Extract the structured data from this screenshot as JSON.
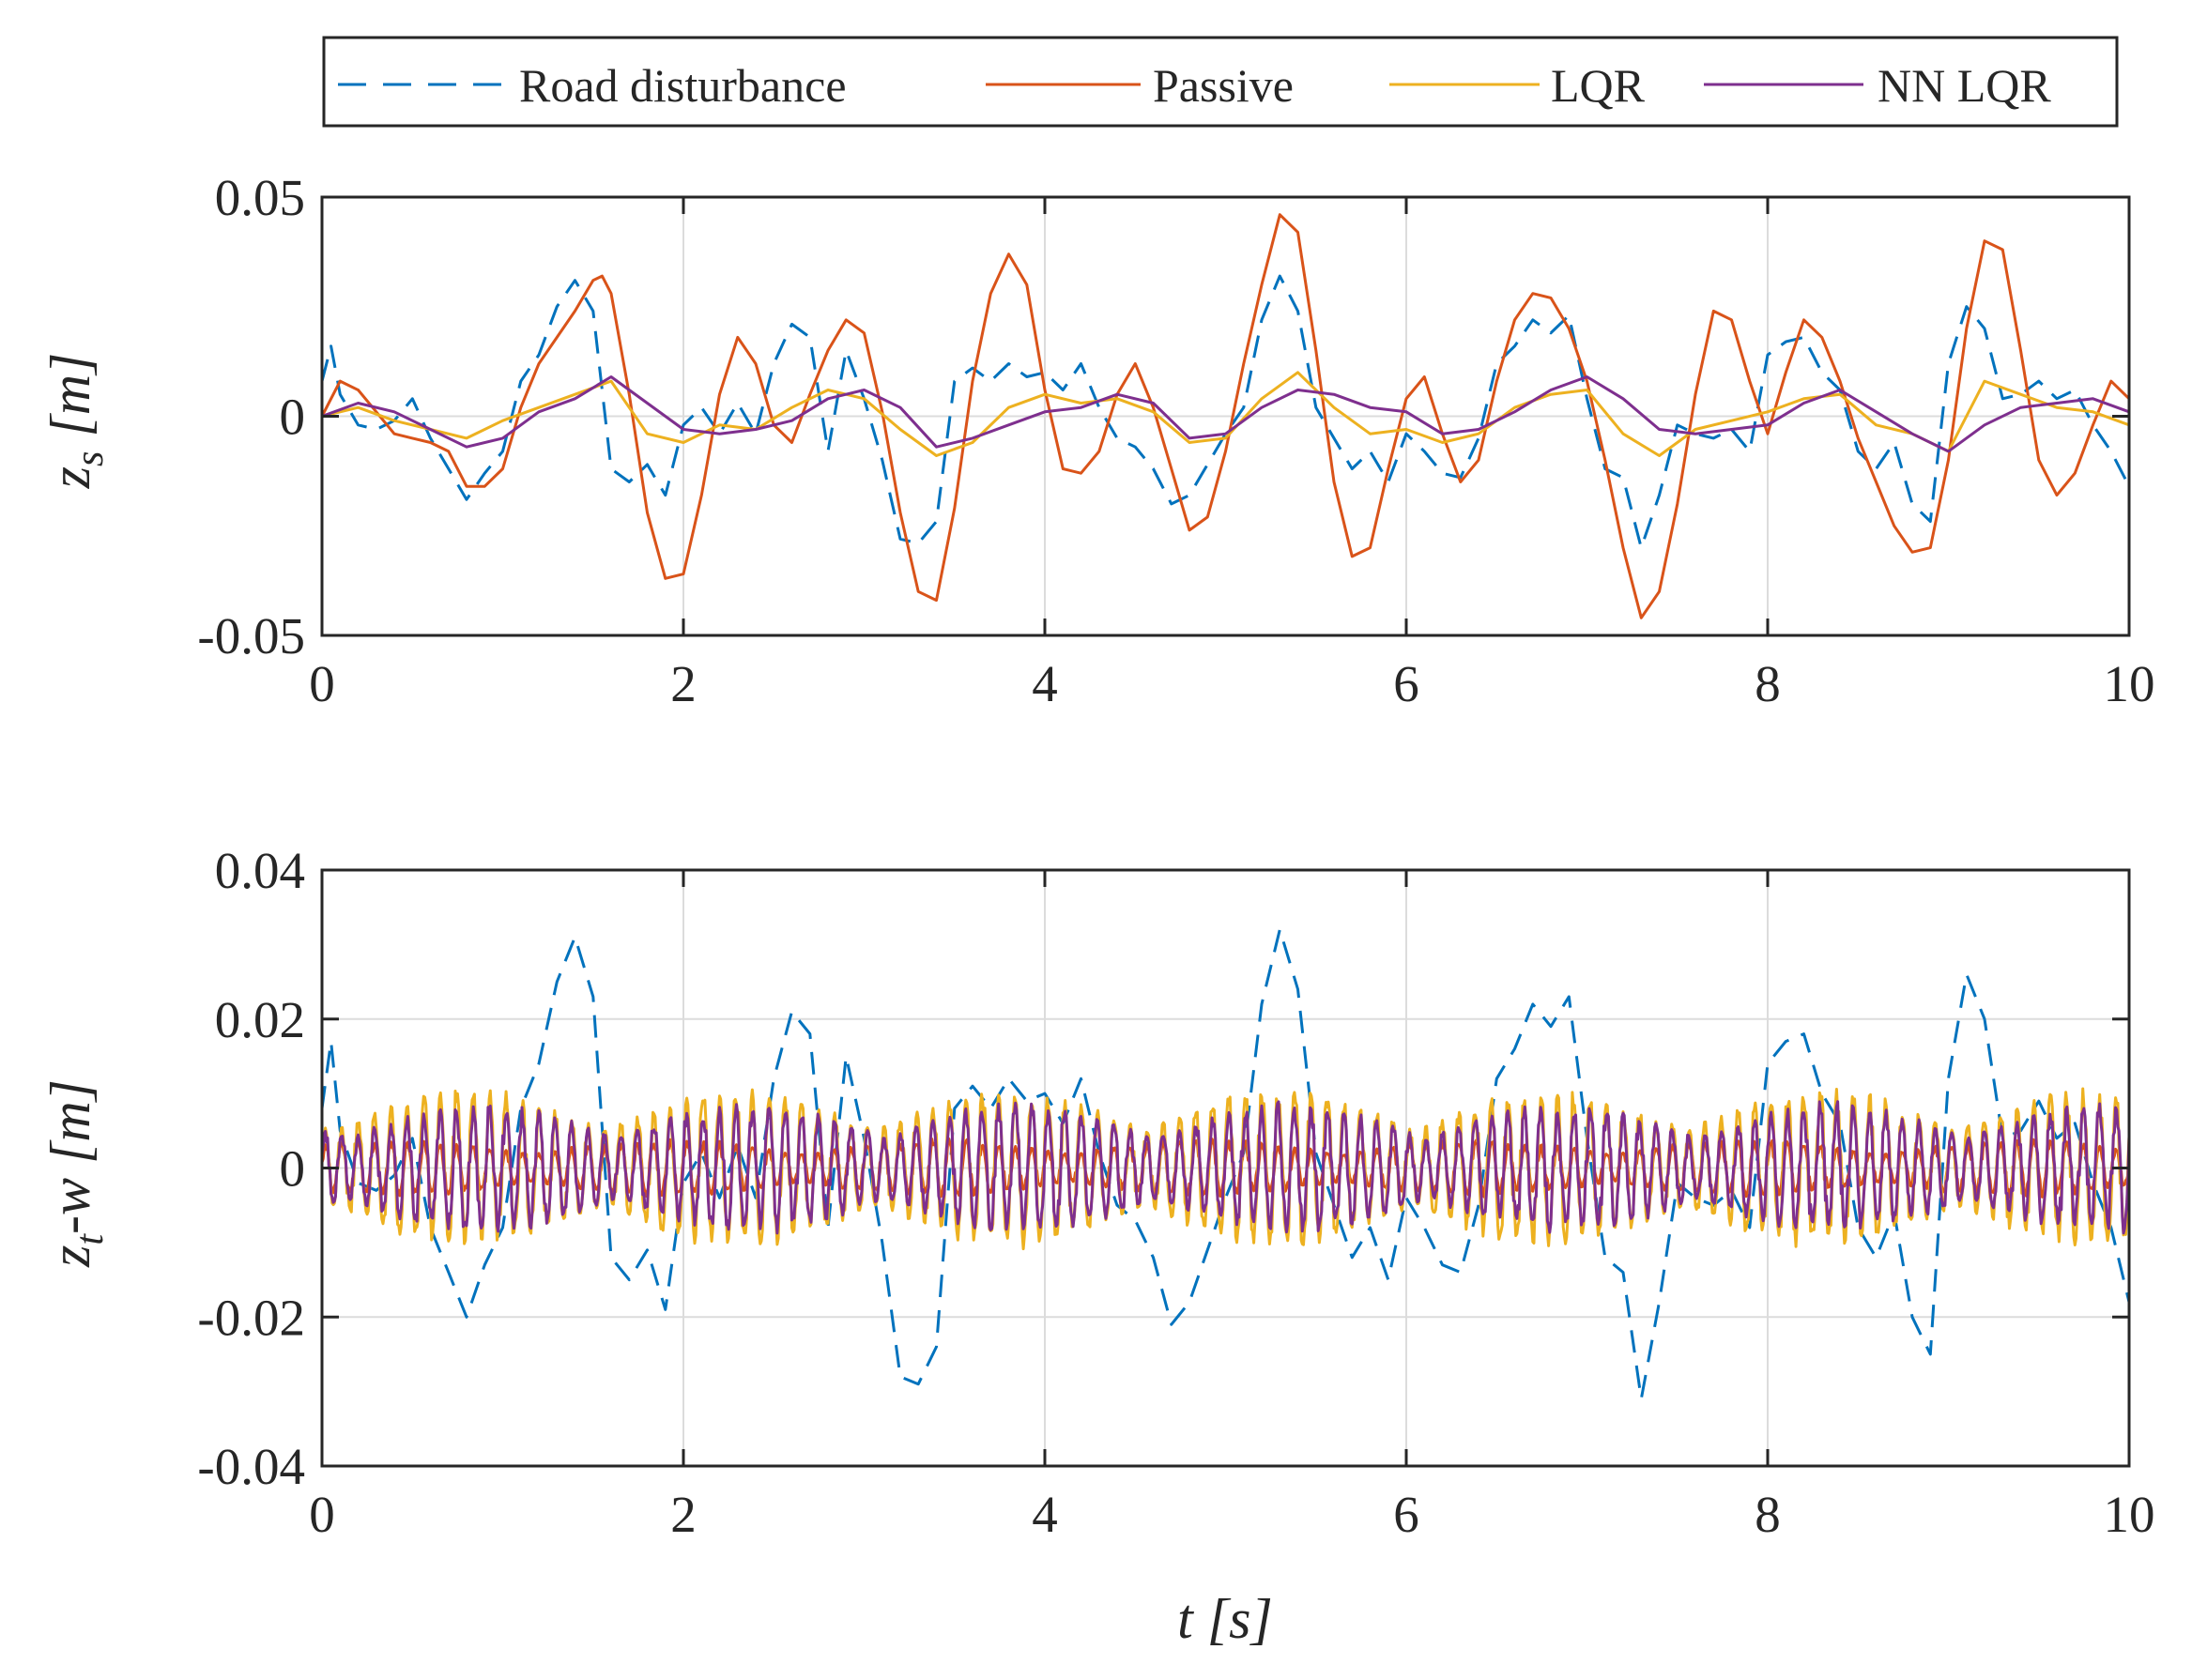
{
  "legend": {
    "items": [
      {
        "label": "Road disturbance",
        "color": "#0072BD",
        "dash": true
      },
      {
        "label": "Passive",
        "color": "#D95319",
        "dash": false
      },
      {
        "label": "LQR",
        "color": "#EDB120",
        "dash": false
      },
      {
        "label": "NN LQR",
        "color": "#7E2F8E",
        "dash": false
      }
    ]
  },
  "chart_data": [
    {
      "type": "line",
      "ylabel_main": "z",
      "ylabel_sub": "s",
      "ylabel_unit": " [m]",
      "xlabel": "",
      "xlim": [
        0,
        10
      ],
      "ylim": [
        -0.05,
        0.05
      ],
      "xticks": [
        0,
        2,
        4,
        6,
        8,
        10
      ],
      "xtick_labels": [
        "0",
        "2",
        "4",
        "6",
        "8",
        "10"
      ],
      "yticks": [
        -0.05,
        0,
        0.05
      ],
      "ytick_labels": [
        "-0.05",
        "0",
        "0.05"
      ],
      "grid": true,
      "series": [
        {
          "name": "Road disturbance",
          "color": "#0072BD",
          "dash": true,
          "x": [
            0,
            0.05,
            0.1,
            0.2,
            0.3,
            0.4,
            0.5,
            0.6,
            0.7,
            0.8,
            0.9,
            1.0,
            1.1,
            1.2,
            1.3,
            1.4,
            1.5,
            1.6,
            1.7,
            1.8,
            1.9,
            2.0,
            2.1,
            2.2,
            2.3,
            2.4,
            2.5,
            2.6,
            2.7,
            2.8,
            2.9,
            3.0,
            3.1,
            3.2,
            3.3,
            3.4,
            3.5,
            3.6,
            3.7,
            3.8,
            3.9,
            4.0,
            4.1,
            4.2,
            4.3,
            4.4,
            4.5,
            4.6,
            4.7,
            4.8,
            4.9,
            5.0,
            5.1,
            5.2,
            5.3,
            5.4,
            5.5,
            5.6,
            5.7,
            5.8,
            5.9,
            6.0,
            6.1,
            6.2,
            6.3,
            6.4,
            6.5,
            6.6,
            6.7,
            6.8,
            6.9,
            7.0,
            7.1,
            7.2,
            7.3,
            7.4,
            7.5,
            7.6,
            7.7,
            7.8,
            7.9,
            8.0,
            8.1,
            8.2,
            8.3,
            8.4,
            8.5,
            8.6,
            8.7,
            8.8,
            8.9,
            9.0,
            9.1,
            9.2,
            9.3,
            9.4,
            9.5,
            9.6,
            9.7,
            9.8,
            9.9,
            10.0
          ],
          "y": [
            0.008,
            0.016,
            0.005,
            -0.002,
            -0.003,
            -0.001,
            0.004,
            -0.005,
            -0.012,
            -0.019,
            -0.013,
            -0.008,
            0.008,
            0.014,
            0.025,
            0.031,
            0.024,
            -0.012,
            -0.015,
            -0.011,
            -0.018,
            -0.002,
            0.002,
            -0.004,
            0.003,
            -0.004,
            0.012,
            0.021,
            0.018,
            -0.008,
            0.015,
            0.004,
            -0.01,
            -0.028,
            -0.029,
            -0.024,
            0.008,
            0.011,
            0.008,
            0.012,
            0.009,
            0.01,
            0.006,
            0.012,
            0.002,
            -0.005,
            -0.007,
            -0.012,
            -0.02,
            -0.018,
            -0.011,
            -0.004,
            0.002,
            0.022,
            0.032,
            0.024,
            0.002,
            -0.005,
            -0.012,
            -0.008,
            -0.015,
            -0.004,
            -0.008,
            -0.013,
            -0.014,
            -0.005,
            0.012,
            0.016,
            0.022,
            0.019,
            0.023,
            0.004,
            -0.012,
            -0.014,
            -0.03,
            -0.018,
            -0.002,
            -0.004,
            -0.005,
            -0.003,
            -0.008,
            0.014,
            0.017,
            0.018,
            0.01,
            0.006,
            -0.008,
            -0.012,
            -0.006,
            -0.02,
            -0.024,
            0.012,
            0.025,
            0.02,
            0.004,
            0.005,
            0.008,
            0.004,
            0.006,
            -0.002,
            -0.008,
            -0.016
          ]
        },
        {
          "name": "Passive",
          "color": "#D95319",
          "dash": false,
          "x": [
            0,
            0.1,
            0.2,
            0.3,
            0.4,
            0.5,
            0.6,
            0.7,
            0.8,
            0.9,
            1.0,
            1.1,
            1.2,
            1.3,
            1.4,
            1.5,
            1.55,
            1.6,
            1.7,
            1.8,
            1.9,
            2.0,
            2.1,
            2.2,
            2.3,
            2.4,
            2.5,
            2.6,
            2.7,
            2.8,
            2.9,
            3.0,
            3.1,
            3.2,
            3.3,
            3.4,
            3.5,
            3.6,
            3.7,
            3.8,
            3.9,
            4.0,
            4.1,
            4.2,
            4.3,
            4.4,
            4.5,
            4.6,
            4.7,
            4.8,
            4.9,
            5.0,
            5.1,
            5.2,
            5.3,
            5.4,
            5.5,
            5.6,
            5.7,
            5.8,
            5.9,
            6.0,
            6.1,
            6.2,
            6.3,
            6.4,
            6.5,
            6.6,
            6.7,
            6.8,
            6.9,
            7.0,
            7.1,
            7.2,
            7.3,
            7.4,
            7.5,
            7.6,
            7.7,
            7.8,
            7.9,
            8.0,
            8.1,
            8.2,
            8.3,
            8.4,
            8.5,
            8.6,
            8.7,
            8.8,
            8.9,
            9.0,
            9.1,
            9.2,
            9.3,
            9.4,
            9.5,
            9.6,
            9.7,
            9.8,
            9.9,
            10.0
          ],
          "y": [
            0,
            0.008,
            0.006,
            0.001,
            -0.004,
            -0.005,
            -0.006,
            -0.008,
            -0.016,
            -0.016,
            -0.012,
            0.002,
            0.012,
            0.018,
            0.024,
            0.031,
            0.032,
            0.028,
            0.005,
            -0.022,
            -0.037,
            -0.036,
            -0.018,
            0.005,
            0.018,
            0.012,
            -0.002,
            -0.006,
            0.005,
            0.015,
            0.022,
            0.019,
            0.001,
            -0.022,
            -0.04,
            -0.042,
            -0.021,
            0.008,
            0.028,
            0.037,
            0.03,
            0.006,
            -0.012,
            -0.013,
            -0.008,
            0.005,
            0.012,
            0.002,
            -0.012,
            -0.026,
            -0.023,
            -0.008,
            0.012,
            0.03,
            0.046,
            0.042,
            0.015,
            -0.015,
            -0.032,
            -0.03,
            -0.012,
            0.004,
            0.009,
            -0.004,
            -0.015,
            -0.01,
            0.008,
            0.022,
            0.028,
            0.027,
            0.02,
            0.008,
            -0.01,
            -0.03,
            -0.046,
            -0.04,
            -0.02,
            0.005,
            0.024,
            0.022,
            0.008,
            -0.004,
            0.01,
            0.022,
            0.018,
            0.008,
            -0.005,
            -0.015,
            -0.025,
            -0.031,
            -0.03,
            -0.01,
            0.02,
            0.04,
            0.038,
            0.015,
            -0.01,
            -0.018,
            -0.013,
            -0.002,
            0.008,
            0.004
          ]
        },
        {
          "name": "LQR",
          "color": "#EDB120",
          "dash": false,
          "x": [
            0,
            0.2,
            0.4,
            0.6,
            0.8,
            1.0,
            1.2,
            1.4,
            1.6,
            1.8,
            2.0,
            2.2,
            2.4,
            2.6,
            2.8,
            3.0,
            3.2,
            3.4,
            3.6,
            3.8,
            4.0,
            4.2,
            4.4,
            4.6,
            4.8,
            5.0,
            5.2,
            5.4,
            5.6,
            5.8,
            6.0,
            6.2,
            6.4,
            6.6,
            6.8,
            7.0,
            7.2,
            7.4,
            7.6,
            7.8,
            8.0,
            8.2,
            8.4,
            8.6,
            8.8,
            9.0,
            9.2,
            9.4,
            9.6,
            9.8,
            10.0
          ],
          "y": [
            0,
            0.002,
            -0.001,
            -0.003,
            -0.005,
            -0.001,
            0.002,
            0.005,
            0.008,
            -0.004,
            -0.006,
            -0.002,
            -0.003,
            0.002,
            0.006,
            0.004,
            -0.003,
            -0.009,
            -0.006,
            0.002,
            0.005,
            0.003,
            0.004,
            0.001,
            -0.006,
            -0.005,
            0.004,
            0.01,
            0.002,
            -0.004,
            -0.003,
            -0.006,
            -0.004,
            0.002,
            0.005,
            0.006,
            -0.004,
            -0.009,
            -0.003,
            -0.001,
            0.001,
            0.004,
            0.005,
            -0.002,
            -0.004,
            -0.008,
            0.008,
            0.005,
            0.002,
            0.001,
            -0.002
          ]
        },
        {
          "name": "NN LQR",
          "color": "#7E2F8E",
          "dash": false,
          "x": [
            0,
            0.2,
            0.4,
            0.6,
            0.8,
            1.0,
            1.2,
            1.4,
            1.6,
            1.8,
            2.0,
            2.2,
            2.4,
            2.6,
            2.8,
            3.0,
            3.2,
            3.4,
            3.6,
            3.8,
            4.0,
            4.2,
            4.4,
            4.6,
            4.8,
            5.0,
            5.2,
            5.4,
            5.6,
            5.8,
            6.0,
            6.2,
            6.4,
            6.6,
            6.8,
            7.0,
            7.2,
            7.4,
            7.6,
            7.8,
            8.0,
            8.2,
            8.4,
            8.6,
            8.8,
            9.0,
            9.2,
            9.4,
            9.6,
            9.8,
            10.0
          ],
          "y": [
            0,
            0.003,
            0.001,
            -0.003,
            -0.007,
            -0.005,
            0.001,
            0.004,
            0.009,
            0.003,
            -0.003,
            -0.004,
            -0.003,
            -0.001,
            0.004,
            0.006,
            0.002,
            -0.007,
            -0.005,
            -0.002,
            0.001,
            0.002,
            0.005,
            0.003,
            -0.005,
            -0.004,
            0.002,
            0.006,
            0.005,
            0.002,
            0.001,
            -0.004,
            -0.003,
            0.001,
            0.006,
            0.009,
            0.004,
            -0.003,
            -0.004,
            -0.003,
            -0.002,
            0.003,
            0.006,
            0.001,
            -0.004,
            -0.008,
            -0.002,
            0.002,
            0.003,
            0.004,
            0.001
          ]
        }
      ]
    },
    {
      "type": "line",
      "ylabel_main": "z",
      "ylabel_sub": "t",
      "ylabel_unit": "-w [m]",
      "xlabel": "t [s]",
      "xlim": [
        0,
        10
      ],
      "ylim": [
        -0.04,
        0.04
      ],
      "xticks": [
        0,
        2,
        4,
        6,
        8,
        10
      ],
      "xtick_labels": [
        "0",
        "2",
        "4",
        "6",
        "8",
        "10"
      ],
      "yticks": [
        -0.04,
        -0.02,
        0,
        0.02,
        0.04
      ],
      "ytick_labels": [
        "-0.04",
        "-0.02",
        "0",
        "0.02",
        "0.04"
      ],
      "grid": true,
      "series": [
        {
          "name": "Road disturbance",
          "color": "#0072BD",
          "dash": true,
          "x": [
            0,
            0.05,
            0.1,
            0.2,
            0.3,
            0.4,
            0.5,
            0.6,
            0.7,
            0.8,
            0.9,
            1.0,
            1.1,
            1.2,
            1.3,
            1.4,
            1.5,
            1.6,
            1.7,
            1.8,
            1.9,
            2.0,
            2.1,
            2.2,
            2.3,
            2.4,
            2.5,
            2.6,
            2.7,
            2.8,
            2.9,
            3.0,
            3.1,
            3.2,
            3.3,
            3.4,
            3.5,
            3.6,
            3.7,
            3.8,
            3.9,
            4.0,
            4.1,
            4.2,
            4.3,
            4.4,
            4.5,
            4.6,
            4.7,
            4.8,
            4.9,
            5.0,
            5.1,
            5.2,
            5.3,
            5.4,
            5.5,
            5.6,
            5.7,
            5.8,
            5.9,
            6.0,
            6.1,
            6.2,
            6.3,
            6.4,
            6.5,
            6.6,
            6.7,
            6.8,
            6.9,
            7.0,
            7.1,
            7.2,
            7.3,
            7.4,
            7.5,
            7.6,
            7.7,
            7.8,
            7.9,
            8.0,
            8.1,
            8.2,
            8.3,
            8.4,
            8.5,
            8.6,
            8.7,
            8.8,
            8.9,
            9.0,
            9.1,
            9.2,
            9.3,
            9.4,
            9.5,
            9.6,
            9.7,
            9.8,
            9.9,
            10.0
          ],
          "y": [
            0.008,
            0.017,
            0.005,
            -0.002,
            -0.003,
            -0.001,
            0.004,
            -0.008,
            -0.014,
            -0.02,
            -0.013,
            -0.008,
            0.008,
            0.014,
            0.025,
            0.031,
            0.023,
            -0.012,
            -0.015,
            -0.011,
            -0.019,
            -0.002,
            0.002,
            -0.004,
            0.003,
            -0.004,
            0.012,
            0.021,
            0.018,
            -0.008,
            0.015,
            0.004,
            -0.01,
            -0.028,
            -0.029,
            -0.024,
            0.008,
            0.011,
            0.008,
            0.012,
            0.009,
            0.01,
            0.006,
            0.012,
            0.002,
            -0.005,
            -0.007,
            -0.012,
            -0.021,
            -0.018,
            -0.011,
            -0.004,
            0.002,
            0.022,
            0.032,
            0.024,
            0.002,
            -0.005,
            -0.012,
            -0.008,
            -0.015,
            -0.004,
            -0.008,
            -0.013,
            -0.014,
            -0.005,
            0.012,
            0.016,
            0.022,
            0.019,
            0.023,
            0.004,
            -0.012,
            -0.014,
            -0.031,
            -0.018,
            -0.002,
            -0.004,
            -0.005,
            -0.003,
            -0.008,
            0.014,
            0.017,
            0.018,
            0.01,
            0.006,
            -0.008,
            -0.012,
            -0.006,
            -0.02,
            -0.025,
            0.012,
            0.026,
            0.02,
            0.004,
            0.005,
            0.009,
            0.004,
            0.006,
            -0.002,
            -0.008,
            -0.018
          ]
        },
        {
          "name": "Passive",
          "color": "#D95319",
          "dash": false,
          "osc_amp": 0.004,
          "osc_freq": 11.0,
          "x": [
            0,
            1,
            2,
            3,
            4,
            5,
            6,
            7,
            8,
            9,
            10
          ],
          "y": [
            0,
            0,
            0,
            0,
            0,
            0,
            0,
            0,
            0,
            0,
            0
          ]
        },
        {
          "name": "LQR",
          "color": "#EDB120",
          "dash": false,
          "osc_amp": 0.011,
          "osc_freq": 11.0,
          "x": [
            0,
            1,
            2,
            3,
            4,
            5,
            6,
            7,
            8,
            9,
            10
          ],
          "y": [
            0,
            0,
            0,
            0,
            0,
            0,
            0,
            0,
            0,
            0,
            0
          ]
        },
        {
          "name": "NN LQR",
          "color": "#7E2F8E",
          "dash": false,
          "osc_amp": 0.009,
          "osc_freq": 11.0,
          "x": [
            0,
            1,
            2,
            3,
            4,
            5,
            6,
            7,
            8,
            9,
            10
          ],
          "y": [
            0,
            0,
            0,
            0,
            0,
            0,
            0,
            0,
            0,
            0,
            0
          ]
        }
      ]
    }
  ]
}
